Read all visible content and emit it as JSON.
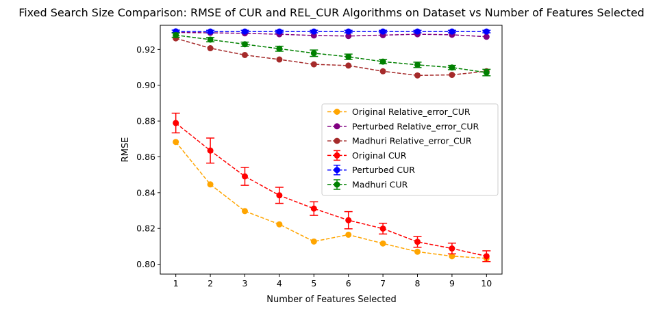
{
  "chart_data": {
    "type": "line",
    "title": "Fixed Search Size Comparison: RMSE of CUR and REL_CUR Algorithms on Dataset vs Number of Features Selected",
    "xlabel": "Number of Features Selected",
    "ylabel": "RMSE",
    "x": [
      1,
      2,
      3,
      4,
      5,
      6,
      7,
      8,
      9,
      10
    ],
    "x_ticks": [
      "1",
      "2",
      "3",
      "4",
      "5",
      "6",
      "7",
      "8",
      "9",
      "10"
    ],
    "y_ticks": [
      "0.80",
      "0.82",
      "0.84",
      "0.86",
      "0.88",
      "0.90",
      "0.92"
    ],
    "xlim": [
      0.55,
      10.45
    ],
    "ylim": [
      0.7945,
      0.9335
    ],
    "grid": false,
    "legend_position": "center-right",
    "series": [
      {
        "name": "Original Relative_error_CUR",
        "color": "#ffa500",
        "values": [
          0.8683,
          0.8446,
          0.8297,
          0.8223,
          0.8127,
          0.8165,
          0.8116,
          0.807,
          0.8045,
          0.8033
        ]
      },
      {
        "name": "Perturbed Relative_error_CUR",
        "color": "#800080",
        "values": [
          0.9295,
          0.9293,
          0.929,
          0.9285,
          0.9278,
          0.9275,
          0.928,
          0.9285,
          0.9282,
          0.9271
        ]
      },
      {
        "name": "Madhuri Relative_error_CUR",
        "color": "#a52a2a",
        "values": [
          0.9262,
          0.9207,
          0.9169,
          0.9144,
          0.9117,
          0.911,
          0.9078,
          0.9055,
          0.9058,
          0.9078
        ]
      },
      {
        "name": "Original CUR",
        "color": "#ff0000",
        "values": [
          0.8789,
          0.8635,
          0.8491,
          0.8385,
          0.8311,
          0.8246,
          0.8199,
          0.8125,
          0.8088,
          0.8045
        ],
        "errors": [
          0.0055,
          0.007,
          0.005,
          0.0045,
          0.0038,
          0.0048,
          0.003,
          0.003,
          0.003,
          0.003
        ]
      },
      {
        "name": "Perturbed CUR",
        "color": "#0000ff",
        "values": [
          0.9301,
          0.93,
          0.93,
          0.93,
          0.93,
          0.93,
          0.93,
          0.93,
          0.93,
          0.93
        ],
        "errors": [
          0.0007,
          0.0007,
          0.0007,
          0.0007,
          0.0007,
          0.0007,
          0.0007,
          0.0007,
          0.0007,
          0.0007
        ]
      },
      {
        "name": "Madhuri CUR",
        "color": "#008000",
        "values": [
          0.928,
          0.9255,
          0.9229,
          0.9204,
          0.9179,
          0.9159,
          0.9132,
          0.9114,
          0.9099,
          0.9071
        ],
        "errors": [
          0.0012,
          0.0012,
          0.0012,
          0.0014,
          0.0018,
          0.0015,
          0.0012,
          0.0015,
          0.0012,
          0.0018
        ]
      }
    ]
  }
}
